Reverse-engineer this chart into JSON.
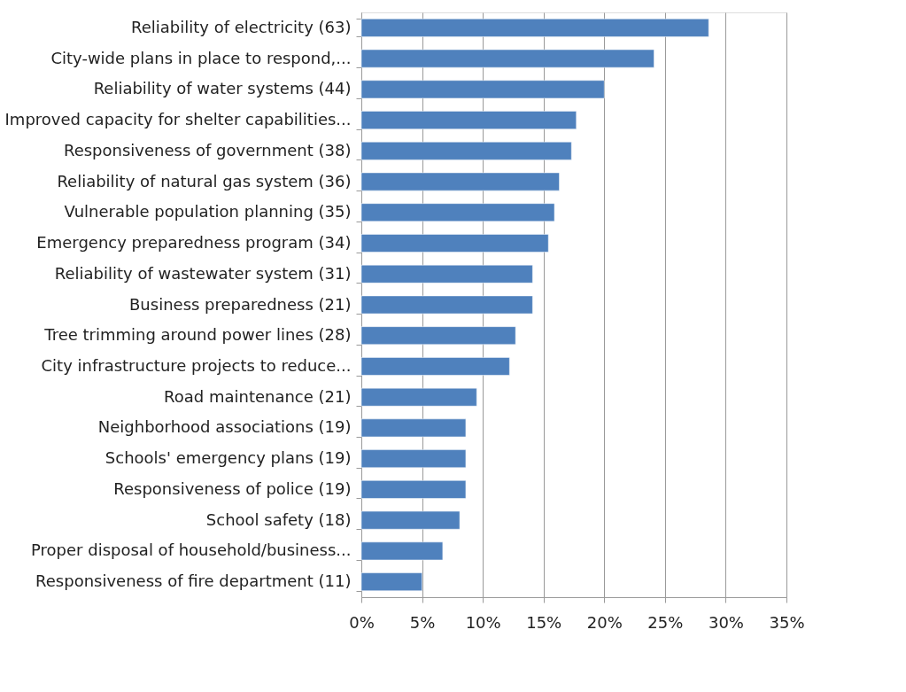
{
  "chart_data": {
    "type": "bar",
    "orientation": "horizontal",
    "categories": [
      "Reliability of electricity (63)",
      "City-wide plans in place to respond,...",
      "Reliability of water systems (44)",
      "Improved capacity for shelter capabilities...",
      "Responsiveness of government (38)",
      "Reliability of natural gas system (36)",
      "Vulnerable population planning (35)",
      "Emergency preparedness program (34)",
      "Reliability of wastewater system (31)",
      "Business preparedness (21)",
      "Tree trimming around power lines (28)",
      "City infrastructure projects to reduce...",
      "Road maintenance (21)",
      "Neighborhood associations (19)",
      "Schools' emergency plans (19)",
      "Responsiveness of police (19)",
      "School safety (18)",
      "Proper disposal of household/business...",
      "Responsiveness of fire department (11)"
    ],
    "values": [
      28.6,
      24.1,
      20.0,
      17.7,
      17.3,
      16.3,
      15.9,
      15.4,
      14.1,
      14.1,
      12.7,
      12.2,
      9.5,
      8.6,
      8.6,
      8.6,
      8.1,
      6.7,
      5.0
    ],
    "color": "#4f81bd",
    "xlim": [
      0,
      35
    ],
    "xticks": [
      {
        "value": 0,
        "label": "0%"
      },
      {
        "value": 5,
        "label": "5%"
      },
      {
        "value": 10,
        "label": "10%"
      },
      {
        "value": 15,
        "label": "15%"
      },
      {
        "value": 20,
        "label": "20%"
      },
      {
        "value": 25,
        "label": "25%"
      },
      {
        "value": 30,
        "label": "30%"
      },
      {
        "value": 35,
        "label": "35%"
      }
    ],
    "grid": "x"
  }
}
